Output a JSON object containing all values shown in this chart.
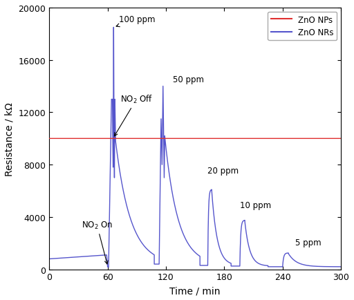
{
  "xlabel": "Time / min",
  "ylabel": "Resistance / kΩ",
  "xlim": [
    0,
    300
  ],
  "ylim": [
    0,
    20000
  ],
  "yticks": [
    0,
    4000,
    8000,
    12000,
    16000,
    20000
  ],
  "xticks": [
    0,
    60,
    120,
    180,
    240,
    300
  ],
  "znp_color": "#e03030",
  "znr_color": "#5555cc",
  "znp_baseline": 10000,
  "legend_znp": "ZnO NPs",
  "legend_znr": "ZnO NRs",
  "figsize": [
    5.12,
    4.35
  ],
  "dpi": 100
}
